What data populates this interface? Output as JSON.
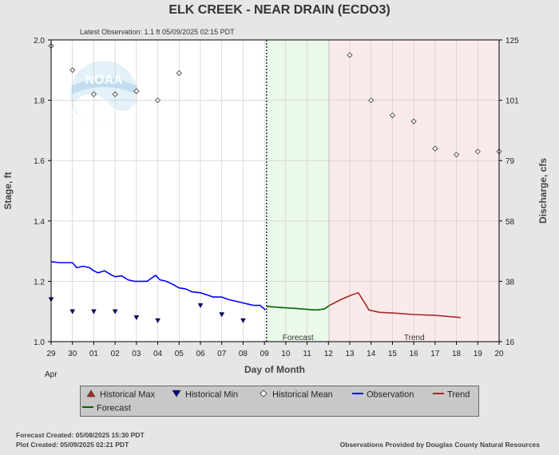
{
  "header": {
    "title": "ELK CREEK - NEAR DRAIN  (ECDO3)",
    "subtitle": "Latest Observation: 1.1 ft 05/09/2025 02:15 PDT"
  },
  "footer": {
    "forecast_created": "Forecast Created: 05/08/2025 15:30 PDT",
    "plot_created": "Plot Created: 05/09/2025 02:21 PDT",
    "provider": "Observations Provided by Douglas County Natural Resources"
  },
  "logo_text": "NOAA",
  "colors": {
    "observation": "#0000ff",
    "forecast": "#006600",
    "trend": "#a52a2a",
    "historical_max": "#a52a2a",
    "historical_min": "#000080",
    "forecast_bg": "#eaf9ea",
    "trend_bg": "#fbeaea"
  },
  "legend": [
    {
      "label": "Historical Max",
      "icon": "triangle-up-icon"
    },
    {
      "label": "Historical Min",
      "icon": "triangle-down-icon"
    },
    {
      "label": "Historical Mean",
      "icon": "diamond-icon"
    },
    {
      "label": "Observation",
      "icon": "line-icon"
    },
    {
      "label": "Trend",
      "icon": "line-icon"
    },
    {
      "label": "Forecast",
      "icon": "line-icon"
    }
  ],
  "chart_data": {
    "type": "line",
    "title": "ELK CREEK - NEAR DRAIN  (ECDO3)",
    "xlabel": "Day of Month",
    "ylabel": "Stage, ft",
    "y2label": "Discharge, cfs",
    "xlim": [
      0,
      21
    ],
    "ylim": [
      1.0,
      2.0
    ],
    "x_ticks": [
      {
        "x": 0,
        "label": "29"
      },
      {
        "x": 1,
        "label": "30"
      },
      {
        "x": 2,
        "label": "01"
      },
      {
        "x": 3,
        "label": "02"
      },
      {
        "x": 4,
        "label": "03"
      },
      {
        "x": 5,
        "label": "04"
      },
      {
        "x": 6,
        "label": "05"
      },
      {
        "x": 7,
        "label": "06"
      },
      {
        "x": 8,
        "label": "07"
      },
      {
        "x": 9,
        "label": "08"
      },
      {
        "x": 10,
        "label": "09"
      },
      {
        "x": 11,
        "label": "10"
      },
      {
        "x": 12,
        "label": "11"
      },
      {
        "x": 13,
        "label": "12"
      },
      {
        "x": 14,
        "label": "13"
      },
      {
        "x": 15,
        "label": "14"
      },
      {
        "x": 16,
        "label": "15"
      },
      {
        "x": 17,
        "label": "16"
      },
      {
        "x": 18,
        "label": "17"
      },
      {
        "x": 19,
        "label": "18"
      },
      {
        "x": 20,
        "label": "19"
      },
      {
        "x": 21,
        "label": "20"
      }
    ],
    "x_sublabel": "Apr",
    "y_ticks": [
      "1.0",
      "1.2",
      "1.4",
      "1.6",
      "1.8",
      "2.0"
    ],
    "y2_ticks": [
      {
        "y": 1.0,
        "label": "16"
      },
      {
        "y": 1.2,
        "label": "38"
      },
      {
        "y": 1.4,
        "label": "58"
      },
      {
        "y": 1.6,
        "label": "79"
      },
      {
        "y": 1.8,
        "label": "101"
      },
      {
        "y": 2.0,
        "label": "125"
      }
    ],
    "grid": true,
    "regions": [
      {
        "name": "Forecast",
        "x_start": 10.1,
        "x_end": 13.05
      },
      {
        "name": "Trend",
        "x_start": 13.05,
        "x_end": 21
      }
    ],
    "latest_observation_x": 10.1,
    "series": [
      {
        "name": "Observation",
        "x": [
          0,
          0.4,
          1.0,
          1.2,
          1.5,
          1.8,
          2.0,
          2.2,
          2.5,
          2.8,
          3.0,
          3.3,
          3.6,
          3.9,
          4.2,
          4.5,
          4.9,
          5.1,
          5.4,
          5.7,
          6.0,
          6.3,
          6.6,
          7.0,
          7.3,
          7.6,
          8.0,
          8.3,
          8.6,
          8.9,
          9.2,
          9.5,
          9.8,
          10.05
        ],
        "y": [
          1.265,
          1.262,
          1.262,
          1.245,
          1.25,
          1.245,
          1.235,
          1.228,
          1.235,
          1.222,
          1.215,
          1.218,
          1.205,
          1.2,
          1.2,
          1.2,
          1.22,
          1.205,
          1.2,
          1.19,
          1.178,
          1.175,
          1.165,
          1.162,
          1.155,
          1.148,
          1.148,
          1.14,
          1.135,
          1.13,
          1.125,
          1.12,
          1.12,
          1.105
        ]
      },
      {
        "name": "Forecast",
        "x": [
          10.1,
          10.8,
          11.5,
          12.0,
          12.4,
          12.8,
          13.05
        ],
        "y": [
          1.117,
          1.113,
          1.11,
          1.107,
          1.105,
          1.108,
          1.12
        ]
      },
      {
        "name": "Trend",
        "x": [
          13.05,
          13.6,
          14.1,
          14.4,
          14.6,
          14.9,
          15.4,
          16.0,
          17.0,
          18.0,
          19.2
        ],
        "y": [
          1.12,
          1.14,
          1.155,
          1.162,
          1.14,
          1.105,
          1.097,
          1.095,
          1.09,
          1.087,
          1.08
        ]
      },
      {
        "name": "Historical Mean",
        "x": [
          0,
          1,
          2,
          3,
          4,
          5,
          6,
          14,
          15,
          16,
          17,
          18,
          19,
          20,
          21
        ],
        "y": [
          1.98,
          1.9,
          1.82,
          1.82,
          1.83,
          1.8,
          1.89,
          1.95,
          1.8,
          1.75,
          1.73,
          1.64,
          1.62,
          1.63,
          1.63
        ]
      },
      {
        "name": "Historical Min",
        "x": [
          0,
          1,
          2,
          3,
          4,
          5,
          7,
          8,
          9
        ],
        "y": [
          1.14,
          1.1,
          1.1,
          1.1,
          1.08,
          1.07,
          1.12,
          1.09,
          1.07
        ]
      }
    ]
  }
}
